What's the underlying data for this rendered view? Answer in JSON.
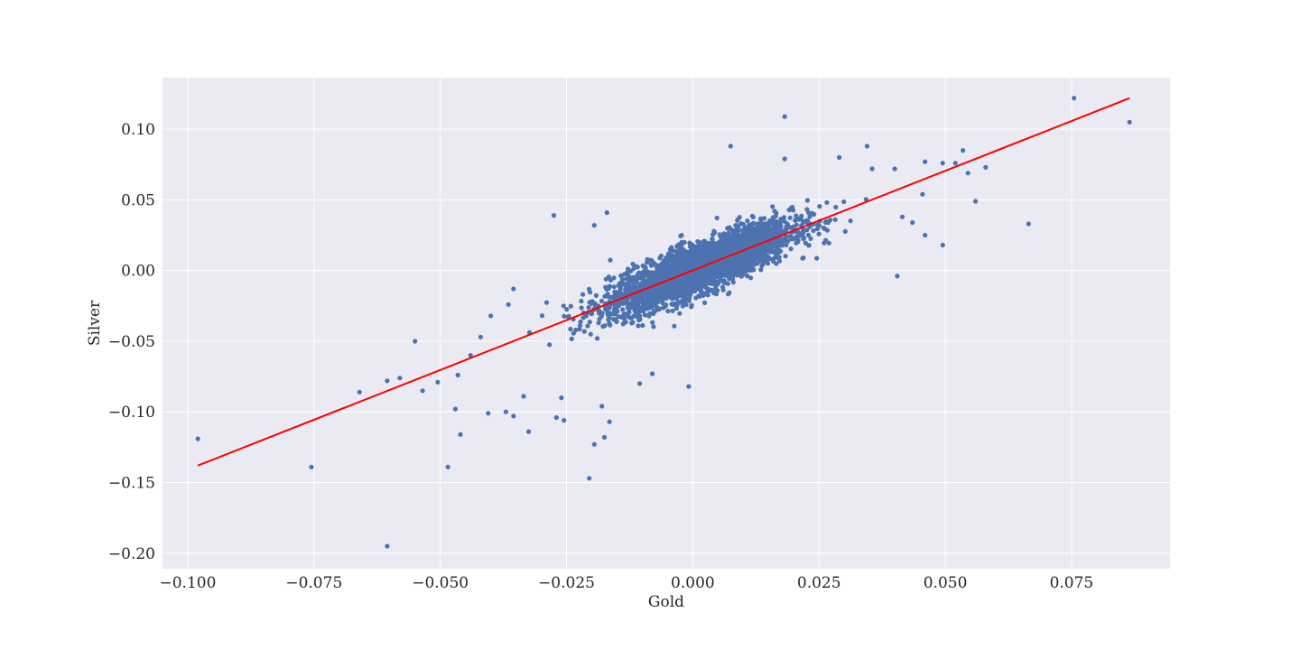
{
  "chart_data": {
    "type": "scatter",
    "title": "",
    "xlabel": "Gold",
    "ylabel": "Silver",
    "xlim": [
      -0.105,
      0.0945
    ],
    "ylim": [
      -0.211,
      0.1365
    ],
    "x_ticks": [
      -0.1,
      -0.075,
      -0.05,
      -0.025,
      0.0,
      0.025,
      0.05,
      0.075
    ],
    "x_tick_labels": [
      "−0.100",
      "−0.075",
      "−0.050",
      "−0.025",
      "0.000",
      "0.025",
      "0.050",
      "0.075"
    ],
    "y_ticks": [
      -0.2,
      -0.15,
      -0.1,
      -0.05,
      0.0,
      0.05,
      0.1
    ],
    "y_tick_labels": [
      "−0.20",
      "−0.15",
      "−0.10",
      "−0.05",
      "0.00",
      "0.05",
      "0.10"
    ],
    "grid": true,
    "colors": {
      "background": "#eaeaf2",
      "grid": "#ffffff",
      "points": "#4c72b0",
      "fit_line": "#ff0000"
    },
    "fit_line": {
      "x": [
        -0.098,
        0.0865
      ],
      "y": [
        -0.138,
        0.122
      ]
    },
    "notable_points": [
      {
        "x": -0.098,
        "y": -0.119
      },
      {
        "x": -0.0755,
        "y": -0.139
      },
      {
        "x": -0.066,
        "y": -0.086
      },
      {
        "x": -0.0605,
        "y": -0.195
      },
      {
        "x": -0.0605,
        "y": -0.078
      },
      {
        "x": -0.058,
        "y": -0.076
      },
      {
        "x": -0.055,
        "y": -0.05
      },
      {
        "x": -0.0535,
        "y": -0.085
      },
      {
        "x": -0.0505,
        "y": -0.079
      },
      {
        "x": -0.0485,
        "y": -0.139
      },
      {
        "x": -0.047,
        "y": -0.098
      },
      {
        "x": -0.046,
        "y": -0.116
      },
      {
        "x": -0.0465,
        "y": -0.074
      },
      {
        "x": -0.044,
        "y": -0.06
      },
      {
        "x": -0.042,
        "y": -0.047
      },
      {
        "x": -0.0405,
        "y": -0.101
      },
      {
        "x": -0.04,
        "y": -0.032
      },
      {
        "x": -0.037,
        "y": -0.1
      },
      {
        "x": -0.0355,
        "y": -0.103
      },
      {
        "x": -0.0365,
        "y": -0.024
      },
      {
        "x": -0.0355,
        "y": -0.013
      },
      {
        "x": -0.0325,
        "y": -0.114
      },
      {
        "x": -0.0335,
        "y": -0.089
      },
      {
        "x": -0.027,
        "y": -0.104
      },
      {
        "x": -0.0255,
        "y": -0.106
      },
      {
        "x": -0.026,
        "y": -0.09
      },
      {
        "x": -0.0275,
        "y": 0.039
      },
      {
        "x": -0.0205,
        "y": -0.147
      },
      {
        "x": -0.0195,
        "y": -0.123
      },
      {
        "x": -0.0175,
        "y": -0.118
      },
      {
        "x": -0.018,
        "y": -0.096
      },
      {
        "x": -0.0165,
        "y": -0.107
      },
      {
        "x": -0.017,
        "y": 0.041
      },
      {
        "x": -0.0195,
        "y": 0.032
      },
      {
        "x": -0.0105,
        "y": -0.08
      },
      {
        "x": -0.008,
        "y": -0.073
      },
      {
        "x": -0.0008,
        "y": -0.082
      },
      {
        "x": 0.0075,
        "y": 0.088
      },
      {
        "x": 0.0182,
        "y": 0.109
      },
      {
        "x": 0.0182,
        "y": 0.079
      },
      {
        "x": 0.029,
        "y": 0.08
      },
      {
        "x": 0.0345,
        "y": 0.088
      },
      {
        "x": 0.0355,
        "y": 0.072
      },
      {
        "x": 0.04,
        "y": 0.072
      },
      {
        "x": 0.0405,
        "y": -0.004
      },
      {
        "x": 0.0415,
        "y": 0.038
      },
      {
        "x": 0.0435,
        "y": 0.034
      },
      {
        "x": 0.0455,
        "y": 0.054
      },
      {
        "x": 0.046,
        "y": 0.077
      },
      {
        "x": 0.046,
        "y": 0.025
      },
      {
        "x": 0.0495,
        "y": 0.076
      },
      {
        "x": 0.0495,
        "y": 0.018
      },
      {
        "x": 0.052,
        "y": 0.076
      },
      {
        "x": 0.0535,
        "y": 0.085
      },
      {
        "x": 0.0545,
        "y": 0.069
      },
      {
        "x": 0.056,
        "y": 0.049
      },
      {
        "x": 0.058,
        "y": 0.073
      },
      {
        "x": 0.0665,
        "y": 0.033
      },
      {
        "x": 0.0755,
        "y": 0.122
      },
      {
        "x": 0.0865,
        "y": 0.105
      }
    ],
    "bulk_distribution": {
      "count": 3400,
      "slope": 1.4,
      "x_mean": 0.0015,
      "x_std": 0.009,
      "residual_std": 0.0085
    }
  }
}
